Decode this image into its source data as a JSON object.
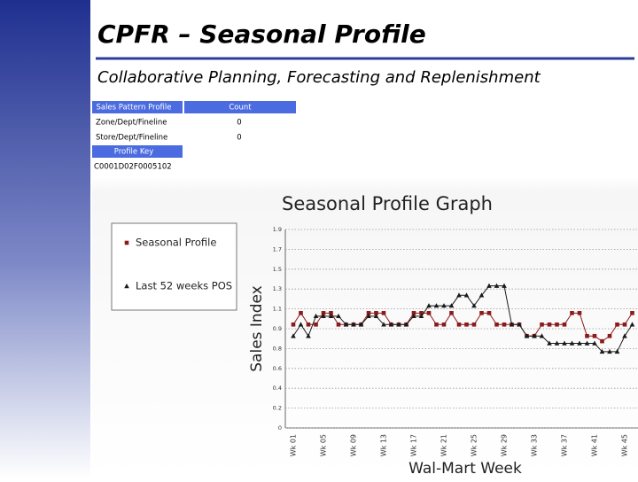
{
  "header": {
    "title": "CPFR – Seasonal Profile",
    "subtitle": "Collaborative Planning, Forecasting and Replenishment"
  },
  "table": {
    "header": [
      "Sales Pattern Profile",
      "Count"
    ],
    "rows": [
      [
        "Zone/Dept/Fineline",
        "0"
      ],
      [
        "Store/Dept/Fineline",
        "0"
      ]
    ],
    "key_header": "Profile Key",
    "key": "C0001D02F0005102"
  },
  "chart_data": {
    "type": "line",
    "title": "Seasonal Profile Graph",
    "x_label": "Wal-Mart Week",
    "y_label": "Sales Index",
    "categories": [
      "Wk 01",
      null,
      null,
      null,
      "Wk 05",
      null,
      null,
      null,
      "Wk 09",
      null,
      null,
      null,
      "Wk 13",
      null,
      null,
      null,
      "Wk 17",
      null,
      null,
      null,
      "Wk 21",
      null,
      null,
      null,
      "Wk 25",
      null,
      null,
      null,
      "Wk 29",
      null,
      null,
      null,
      "Wk 33",
      null,
      null,
      null,
      "Wk 37",
      null,
      null,
      null,
      "Wk 41",
      null,
      null,
      null,
      "Wk 45",
      null
    ],
    "series": [
      {
        "name": "Seasonal Profile",
        "color": "#8b1a1a",
        "marker": "square",
        "values": [
          0.99,
          1.1,
          0.99,
          0.99,
          1.1,
          1.1,
          0.99,
          0.99,
          0.99,
          0.99,
          1.1,
          1.1,
          1.1,
          0.99,
          0.99,
          0.99,
          1.1,
          1.1,
          1.1,
          0.99,
          0.99,
          1.1,
          0.99,
          0.99,
          0.99,
          1.1,
          1.1,
          0.99,
          0.99,
          0.99,
          0.99,
          0.88,
          0.88,
          0.99,
          0.99,
          0.99,
          0.99,
          1.1,
          1.1,
          0.88,
          0.88,
          0.83,
          0.88,
          0.99,
          0.99,
          1.1
        ]
      },
      {
        "name": "Last 52 weeks POS",
        "color": "#1a1a1a",
        "marker": "triangle",
        "values": [
          0.88,
          0.99,
          0.88,
          1.07,
          1.07,
          1.07,
          1.07,
          0.99,
          0.99,
          0.99,
          1.07,
          1.07,
          0.99,
          0.99,
          0.99,
          0.99,
          1.07,
          1.07,
          1.17,
          1.17,
          1.17,
          1.17,
          1.27,
          1.27,
          1.17,
          1.27,
          1.36,
          1.36,
          1.36,
          0.99,
          0.99,
          0.88,
          0.88,
          0.88,
          0.81,
          0.81,
          0.81,
          0.81,
          0.81,
          0.81,
          0.81,
          0.73,
          0.73,
          0.73,
          0.88,
          0.99
        ]
      }
    ],
    "ylim": [
      0,
      1.9
    ],
    "yticks": [
      0,
      {
        "value": 0.19,
        "label": "0.2"
      },
      {
        "value": 0.38,
        "label": "0.4"
      },
      {
        "value": 0.57,
        "label": "0.6"
      },
      {
        "value": 0.76,
        "label": "0.8"
      },
      {
        "value": 0.95,
        "label": "0.9"
      },
      {
        "value": 1.14,
        "label": "1.1"
      },
      {
        "value": 1.33,
        "label": "1.3"
      },
      {
        "value": 1.52,
        "label": "1.5"
      },
      {
        "value": 1.71,
        "label": "1.7"
      },
      1.9
    ],
    "grid": true
  }
}
